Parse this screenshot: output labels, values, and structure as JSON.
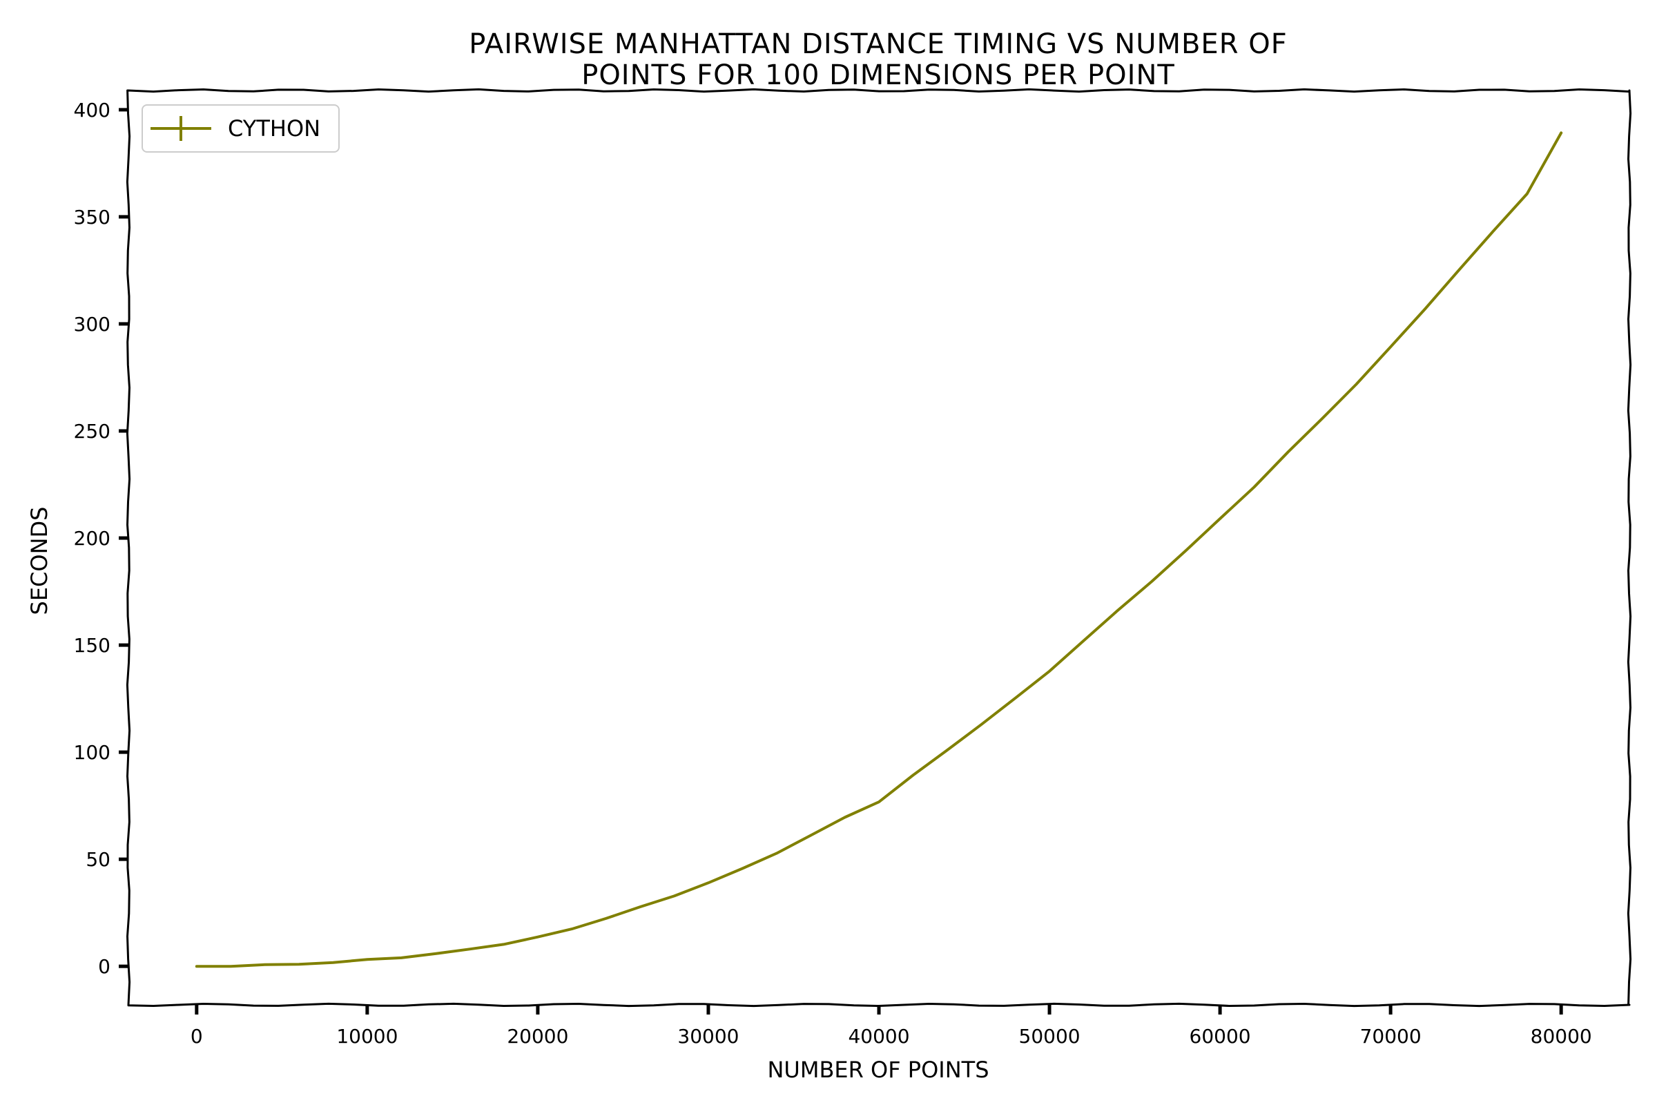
{
  "chart_data": {
    "type": "line",
    "title_lines": [
      "Pairwise Manhattan Distance Timing vs Number of",
      "Points for 100 Dimensions per Point"
    ],
    "xlabel": "Number of Points",
    "ylabel": "Seconds",
    "xlim": [
      -4000,
      84000
    ],
    "ylim": [
      -18,
      409
    ],
    "xticks": [
      0,
      10000,
      20000,
      30000,
      40000,
      50000,
      60000,
      70000,
      80000
    ],
    "xtick_labels": [
      "0",
      "10000",
      "20000",
      "30000",
      "40000",
      "50000",
      "60000",
      "70000",
      "80000"
    ],
    "yticks": [
      0,
      50,
      100,
      150,
      200,
      250,
      300,
      350,
      400
    ],
    "ytick_labels": [
      "0",
      "50",
      "100",
      "150",
      "200",
      "250",
      "300",
      "350",
      "400"
    ],
    "legend": {
      "placement": "top-left",
      "entries": [
        "Cython"
      ]
    },
    "grid": false,
    "style": "xkcd",
    "series": [
      {
        "name": "Cython",
        "color": "#808000",
        "x": [
          0,
          2000,
          4000,
          6000,
          8000,
          10000,
          12000,
          14000,
          16000,
          18000,
          20000,
          22000,
          24000,
          26000,
          28000,
          30000,
          32000,
          34000,
          36000,
          38000,
          40000,
          42000,
          44000,
          46000,
          48000,
          50000,
          52000,
          54000,
          56000,
          58000,
          60000,
          62000,
          64000,
          66000,
          68000,
          70000,
          72000,
          74000,
          76000,
          78000,
          80000
        ],
        "y": [
          0,
          0.2,
          0.5,
          1.1,
          1.8,
          3.0,
          4.2,
          5.8,
          7.9,
          10.5,
          13.5,
          17.5,
          22.5,
          27.5,
          33,
          39,
          45.5,
          53,
          61,
          69.5,
          77,
          89,
          101,
          113,
          125,
          138,
          152,
          166,
          180,
          194,
          209,
          224,
          240,
          256,
          272,
          289,
          307,
          325,
          343,
          361,
          389
        ]
      }
    ]
  }
}
